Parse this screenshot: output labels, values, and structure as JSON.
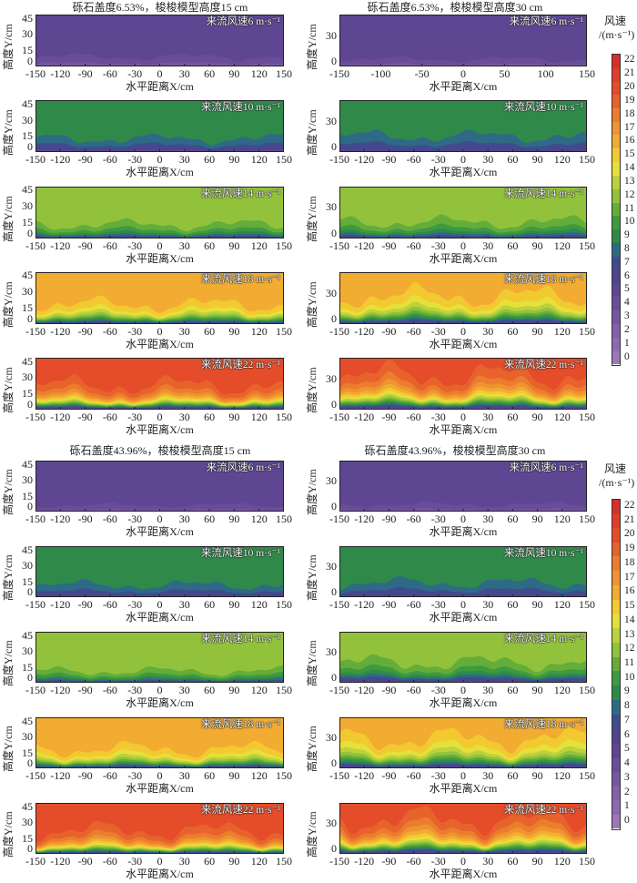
{
  "chart_data": {
    "type": "heatmap",
    "colorbar": {
      "title": "风速",
      "unit": "/(m·s⁻¹)",
      "ticks": [
        0,
        1,
        2,
        3,
        4,
        5,
        6,
        7,
        8,
        9,
        10,
        11,
        12,
        13,
        14,
        15,
        16,
        17,
        18,
        19,
        20,
        21,
        22
      ],
      "colors": [
        "#9c78ba",
        "#9068b2",
        "#8460aa",
        "#7656a2",
        "#6a4c9a",
        "#5e4692",
        "#4f428e",
        "#3e4c8e",
        "#2e6a86",
        "#2f8a4a",
        "#3e9a3e",
        "#64ad3a",
        "#92c23c",
        "#bcd23c",
        "#e6e03a",
        "#f3c932",
        "#f2ac32",
        "#ef9430",
        "#ec7c2e",
        "#e8622c",
        "#e44c2a",
        "#e03c28",
        "#d82e26"
      ]
    },
    "groups": [
      {
        "title": "砾石盖度6.53%，梭梭模型高度15 cm",
        "gravel_cover_percent": 6.53,
        "model_height_cm": 15,
        "xlabel": "水平距离X/cm",
        "ylabel": "高度Y/cm",
        "panels": [
          {
            "label": "来流风速6 m·s⁻¹",
            "inflow_speed": 6,
            "top_speed": 5.6,
            "surface_speed": 3.0,
            "boundary_layer_height_cm": 18,
            "xlim": [
              -150,
              150
            ],
            "ylim": [
              0,
              48
            ],
            "xticks": [
              -150,
              -120,
              -90,
              -60,
              -30,
              0,
              30,
              60,
              90,
              120,
              150
            ],
            "yticks": [
              0,
              15,
              30,
              45
            ]
          },
          {
            "label": "来流风速10 m·s⁻¹",
            "inflow_speed": 10,
            "top_speed": 9.6,
            "surface_speed": 5.0,
            "boundary_layer_height_cm": 18,
            "xlim": [
              -150,
              150
            ],
            "ylim": [
              0,
              48
            ],
            "xticks": [
              -150,
              -120,
              -90,
              -60,
              -30,
              0,
              30,
              60,
              90,
              120,
              150
            ],
            "yticks": [
              0,
              15,
              30,
              45
            ]
          },
          {
            "label": "来流风速14 m·s⁻¹",
            "inflow_speed": 14,
            "top_speed": 12.8,
            "surface_speed": 6.0,
            "boundary_layer_height_cm": 18,
            "xlim": [
              -150,
              150
            ],
            "ylim": [
              0,
              48
            ],
            "xticks": [
              -150,
              -120,
              -90,
              -60,
              -30,
              0,
              30,
              60,
              90,
              120,
              150
            ],
            "yticks": [
              0,
              15,
              30,
              45
            ]
          },
          {
            "label": "来流风速18 m·s⁻¹",
            "inflow_speed": 18,
            "top_speed": 16.8,
            "surface_speed": 5.0,
            "boundary_layer_height_cm": 20,
            "xlim": [
              -150,
              150
            ],
            "ylim": [
              0,
              48
            ],
            "xticks": [
              -150,
              -120,
              -90,
              -60,
              -30,
              0,
              30,
              60,
              90,
              120,
              150
            ],
            "yticks": [
              0,
              15,
              30,
              45
            ]
          },
          {
            "label": "来流风速22 m·s⁻¹",
            "inflow_speed": 22,
            "top_speed": 20.8,
            "surface_speed": 3.5,
            "boundary_layer_height_cm": 22,
            "xlim": [
              -150,
              150
            ],
            "ylim": [
              0,
              48
            ],
            "xticks": [
              -150,
              -120,
              -90,
              -60,
              -30,
              0,
              30,
              60,
              90,
              120,
              150
            ],
            "yticks": [
              0,
              15,
              30,
              45
            ]
          }
        ]
      },
      {
        "title": "砾石盖度6.53%，梭梭模型高度30 cm",
        "gravel_cover_percent": 6.53,
        "model_height_cm": 30,
        "xlabel": "水平距离X/cm",
        "ylabel": "高度Y/cm",
        "panels": [
          {
            "label": "来流风速6 m·s⁻¹",
            "inflow_speed": 6,
            "top_speed": 5.6,
            "surface_speed": 3.0,
            "boundary_layer_height_cm": 14,
            "xlim": [
              -150,
              150
            ],
            "ylim": [
              0,
              50
            ],
            "xticks": [
              -150,
              -100,
              -50,
              0,
              50,
              100,
              150
            ],
            "yticks": [
              0,
              30
            ]
          },
          {
            "label": "来流风速10 m·s⁻¹",
            "inflow_speed": 10,
            "top_speed": 9.6,
            "surface_speed": 5.5,
            "boundary_layer_height_cm": 24,
            "xlim": [
              -150,
              150
            ],
            "ylim": [
              0,
              50
            ],
            "xticks": [
              -150,
              -120,
              -90,
              -60,
              -30,
              0,
              30,
              60,
              90,
              120,
              150
            ],
            "yticks": [
              0,
              30
            ]
          },
          {
            "label": "来流风速14 m·s⁻¹",
            "inflow_speed": 14,
            "top_speed": 12.8,
            "surface_speed": 6.0,
            "boundary_layer_height_cm": 22,
            "xlim": [
              -150,
              150
            ],
            "ylim": [
              0,
              50
            ],
            "xticks": [
              -150,
              -120,
              -90,
              -60,
              -30,
              0,
              30,
              60,
              90,
              120,
              150
            ],
            "yticks": [
              0,
              30
            ]
          },
          {
            "label": "来流风速18 m·s⁻¹",
            "inflow_speed": 18,
            "top_speed": 16.8,
            "surface_speed": 5.0,
            "boundary_layer_height_cm": 30,
            "xlim": [
              -150,
              150
            ],
            "ylim": [
              0,
              50
            ],
            "xticks": [
              -150,
              -120,
              -90,
              -60,
              -30,
              0,
              30,
              60,
              90,
              120,
              150
            ],
            "yticks": [
              0,
              30
            ]
          },
          {
            "label": "来流风速22 m·s⁻¹",
            "inflow_speed": 22,
            "top_speed": 21.0,
            "surface_speed": 4.0,
            "boundary_layer_height_cm": 35,
            "xlim": [
              -150,
              150
            ],
            "ylim": [
              0,
              50
            ],
            "xticks": [
              -150,
              -120,
              -90,
              -60,
              -30,
              0,
              30,
              60,
              90,
              120,
              150
            ],
            "yticks": [
              0,
              30
            ]
          }
        ]
      },
      {
        "title": "砾石盖度43.96%，梭梭模型高度15 cm",
        "gravel_cover_percent": 43.96,
        "model_height_cm": 15,
        "xlabel": "水平距离X/cm",
        "ylabel": "高度Y/cm",
        "panels": [
          {
            "label": "来流风速6 m·s⁻¹",
            "inflow_speed": 6,
            "top_speed": 5.6,
            "surface_speed": 3.0,
            "boundary_layer_height_cm": 12,
            "xlim": [
              -150,
              150
            ],
            "ylim": [
              0,
              48
            ],
            "xticks": [
              -150,
              -120,
              -90,
              -60,
              -30,
              0,
              30,
              60,
              90,
              120,
              150
            ],
            "yticks": [
              0,
              15,
              30,
              45
            ]
          },
          {
            "label": "来流风速10 m·s⁻¹",
            "inflow_speed": 10,
            "top_speed": 9.6,
            "surface_speed": 5.5,
            "boundary_layer_height_cm": 18,
            "xlim": [
              -150,
              150
            ],
            "ylim": [
              0,
              48
            ],
            "xticks": [
              -150,
              -120,
              -90,
              -60,
              -30,
              0,
              30,
              60,
              90,
              120,
              150
            ],
            "yticks": [
              0,
              15,
              30,
              45
            ]
          },
          {
            "label": "来流风速14 m·s⁻¹",
            "inflow_speed": 14,
            "top_speed": 12.9,
            "surface_speed": 6.0,
            "boundary_layer_height_cm": 16,
            "xlim": [
              -150,
              150
            ],
            "ylim": [
              0,
              48
            ],
            "xticks": [
              -150,
              -120,
              -90,
              -60,
              -30,
              0,
              30,
              60,
              90,
              120,
              150
            ],
            "yticks": [
              0,
              15,
              30,
              45
            ]
          },
          {
            "label": "来流风速18 m·s⁻¹",
            "inflow_speed": 18,
            "top_speed": 16.8,
            "surface_speed": 5.0,
            "boundary_layer_height_cm": 20,
            "xlim": [
              -150,
              150
            ],
            "ylim": [
              0,
              48
            ],
            "xticks": [
              -150,
              -120,
              -90,
              -60,
              -30,
              0,
              30,
              60,
              90,
              120,
              150
            ],
            "yticks": [
              0,
              15,
              30,
              45
            ]
          },
          {
            "label": "来流风速22 m·s⁻¹",
            "inflow_speed": 22,
            "top_speed": 20.8,
            "surface_speed": 5.0,
            "boundary_layer_height_cm": 22,
            "xlim": [
              -150,
              150
            ],
            "ylim": [
              0,
              48
            ],
            "xticks": [
              -150,
              -120,
              -90,
              -60,
              -30,
              0,
              30,
              60,
              90,
              120,
              150
            ],
            "yticks": [
              0,
              15,
              30,
              45
            ]
          }
        ]
      },
      {
        "title": "砾石盖度43.96%，梭梭模型高度30 cm",
        "gravel_cover_percent": 43.96,
        "model_height_cm": 30,
        "xlabel": "水平距离X/cm",
        "ylabel": "高度Y/cm",
        "panels": [
          {
            "label": "来流风速6 m·s⁻¹",
            "inflow_speed": 6,
            "top_speed": 5.6,
            "surface_speed": 3.0,
            "boundary_layer_height_cm": 14,
            "xlim": [
              -150,
              150
            ],
            "ylim": [
              0,
              50
            ],
            "xticks": [
              -150,
              -120,
              -90,
              -60,
              -30,
              0,
              30,
              60,
              90,
              120,
              150
            ],
            "yticks": [
              0,
              30
            ]
          },
          {
            "label": "来流风速10 m·s⁻¹",
            "inflow_speed": 10,
            "top_speed": 9.6,
            "surface_speed": 5.5,
            "boundary_layer_height_cm": 22,
            "xlim": [
              -150,
              150
            ],
            "ylim": [
              0,
              50
            ],
            "xticks": [
              -150,
              -120,
              -90,
              -60,
              -30,
              0,
              30,
              60,
              90,
              120,
              150
            ],
            "yticks": [
              0,
              30
            ]
          },
          {
            "label": "来流风速14 m·s⁻¹",
            "inflow_speed": 14,
            "top_speed": 12.8,
            "surface_speed": 5.0,
            "boundary_layer_height_cm": 26,
            "xlim": [
              -150,
              150
            ],
            "ylim": [
              0,
              50
            ],
            "xticks": [
              -150,
              -120,
              -90,
              -60,
              -30,
              0,
              30,
              60,
              90,
              120,
              150
            ],
            "yticks": [
              0,
              30
            ]
          },
          {
            "label": "来流风速18 m·s⁻¹",
            "inflow_speed": 18,
            "top_speed": 16.8,
            "surface_speed": 5.0,
            "boundary_layer_height_cm": 32,
            "xlim": [
              -150,
              150
            ],
            "ylim": [
              0,
              50
            ],
            "xticks": [
              -150,
              -120,
              -90,
              -60,
              -30,
              0,
              30,
              60,
              90,
              120,
              150
            ],
            "yticks": [
              0,
              30
            ]
          },
          {
            "label": "来流风速22 m·s⁻¹",
            "inflow_speed": 22,
            "top_speed": 21.0,
            "surface_speed": 4.5,
            "boundary_layer_height_cm": 36,
            "xlim": [
              -150,
              150
            ],
            "ylim": [
              0,
              50
            ],
            "xticks": [
              -150,
              -120,
              -90,
              -60,
              -30,
              0,
              30,
              60,
              90,
              120,
              150
            ],
            "yticks": [
              0,
              30
            ]
          }
        ]
      }
    ]
  }
}
